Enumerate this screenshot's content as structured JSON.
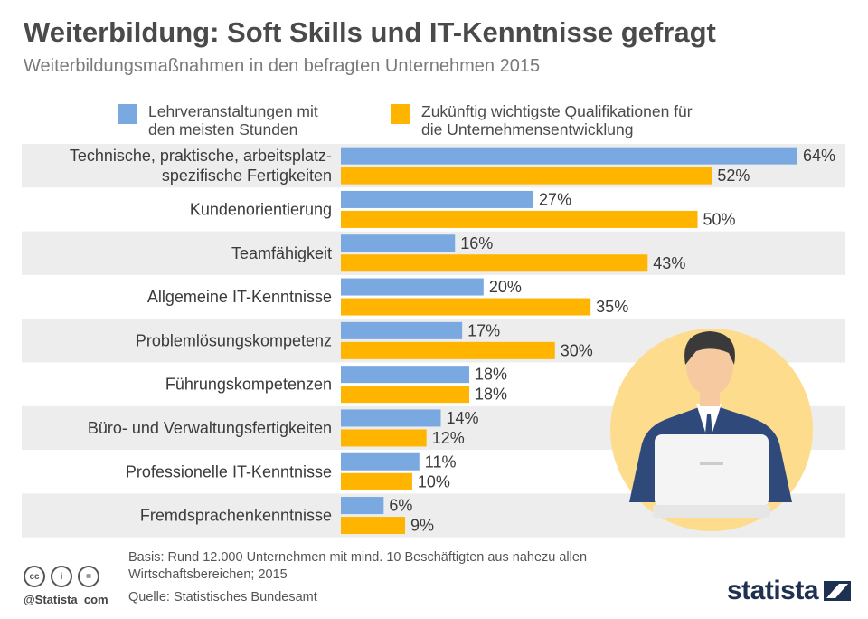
{
  "title": "Weiterbildung: Soft Skills und IT-Kenntnisse gefragt",
  "subtitle": "Weiterbildungsmaßnahmen in den befragten Unternehmen 2015",
  "colors": {
    "series1": "#7aa8e0",
    "series2": "#ffb400",
    "band": "#ededed",
    "illustration_bg": "#fddc8e",
    "suit": "#2f4a7a"
  },
  "chart_data": {
    "type": "bar",
    "orientation": "horizontal",
    "categories": [
      "Technische, praktische, arbeitsplatz-\nspezifische Fertigkeiten",
      "Kundenorientierung",
      "Teamfähigkeit",
      "Allgemeine IT-Kenntnisse",
      "Problemlösungskompetenz",
      "Führungskompetenzen",
      "Büro- und Verwaltungsfertigkeiten",
      "Professionelle IT-Kenntnisse",
      "Fremdsprachenkenntnisse"
    ],
    "series": [
      {
        "name": "Lehrveranstaltungen mit\nden meisten Stunden",
        "values": [
          64,
          27,
          16,
          20,
          17,
          18,
          14,
          11,
          6
        ]
      },
      {
        "name": "Zukünftig wichtigste Qualifikationen für\ndie Unternehmensentwicklung",
        "values": [
          52,
          50,
          43,
          35,
          30,
          18,
          12,
          10,
          9
        ]
      }
    ],
    "value_suffix": "%",
    "xlim": [
      0,
      64
    ],
    "legend_position": "top",
    "grid": false
  },
  "footer": {
    "basis": "Basis: Rund 12.000 Unternehmen mit mind. 10 Beschäftigten aus nahezu allen Wirtschaftsbereichen; 2015",
    "source": "Quelle: Statistisches Bundesamt",
    "handle": "@Statista_com",
    "logo_text": "statista",
    "cc_icons": [
      "cc-icon",
      "by-icon",
      "nd-icon"
    ],
    "cc_glyphs": [
      "cc",
      "i",
      "="
    ]
  }
}
